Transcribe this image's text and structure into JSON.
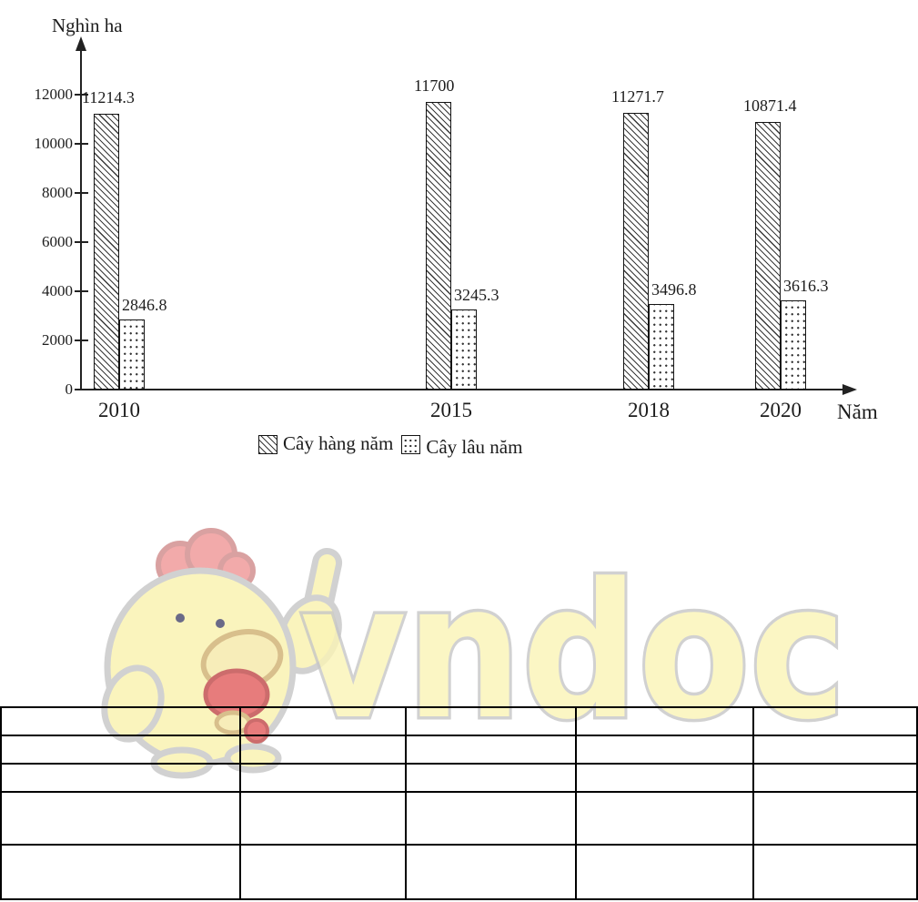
{
  "page": {
    "background": "#ffffff"
  },
  "chart_data": {
    "type": "bar",
    "title": "",
    "ylabel": "Nghìn ha",
    "xlabel": "Năm",
    "categories": [
      "2010",
      "2015",
      "2018",
      "2020"
    ],
    "series": [
      {
        "name": "Cây hàng năm",
        "pattern": "diagonal-hatch",
        "values": [
          11214.3,
          11700,
          11271.7,
          10871.4
        ],
        "data_labels": [
          "11214.3",
          "11700",
          "11271.7",
          "10871.4"
        ]
      },
      {
        "name": "Cây lâu năm",
        "pattern": "dots",
        "values": [
          2846.8,
          3245.3,
          3496.8,
          3616.3
        ],
        "data_labels": [
          "2846.8",
          "3245.3",
          "3496.8",
          "3616.3"
        ]
      }
    ],
    "ylim": [
      0,
      12000
    ],
    "yticks": [
      0,
      2000,
      4000,
      6000,
      8000,
      10000,
      12000
    ],
    "ytick_labels": [
      "0",
      "2000",
      "4000",
      "6000",
      "8000",
      "10000",
      "12000"
    ],
    "grid": false,
    "legend_position": "bottom",
    "bar_fill": "#ffffff",
    "bar_border": "#141414",
    "axis_color": "#222222"
  },
  "watermark": {
    "brand_text": "vndoc",
    "mascot": "chick-thumbs-up-mascot",
    "fill_color": "#fbf4b6",
    "outline_color": "#c6c6c6",
    "accent_red": "#e25c5c"
  },
  "table": {
    "rows": 5,
    "columns": 5,
    "cells": [
      [
        "",
        "",
        "",
        "",
        ""
      ],
      [
        "",
        "",
        "",
        "",
        ""
      ],
      [
        "",
        "",
        "",
        "",
        ""
      ],
      [
        "",
        "",
        "",
        "",
        ""
      ],
      [
        "",
        "",
        "",
        "",
        ""
      ]
    ]
  }
}
